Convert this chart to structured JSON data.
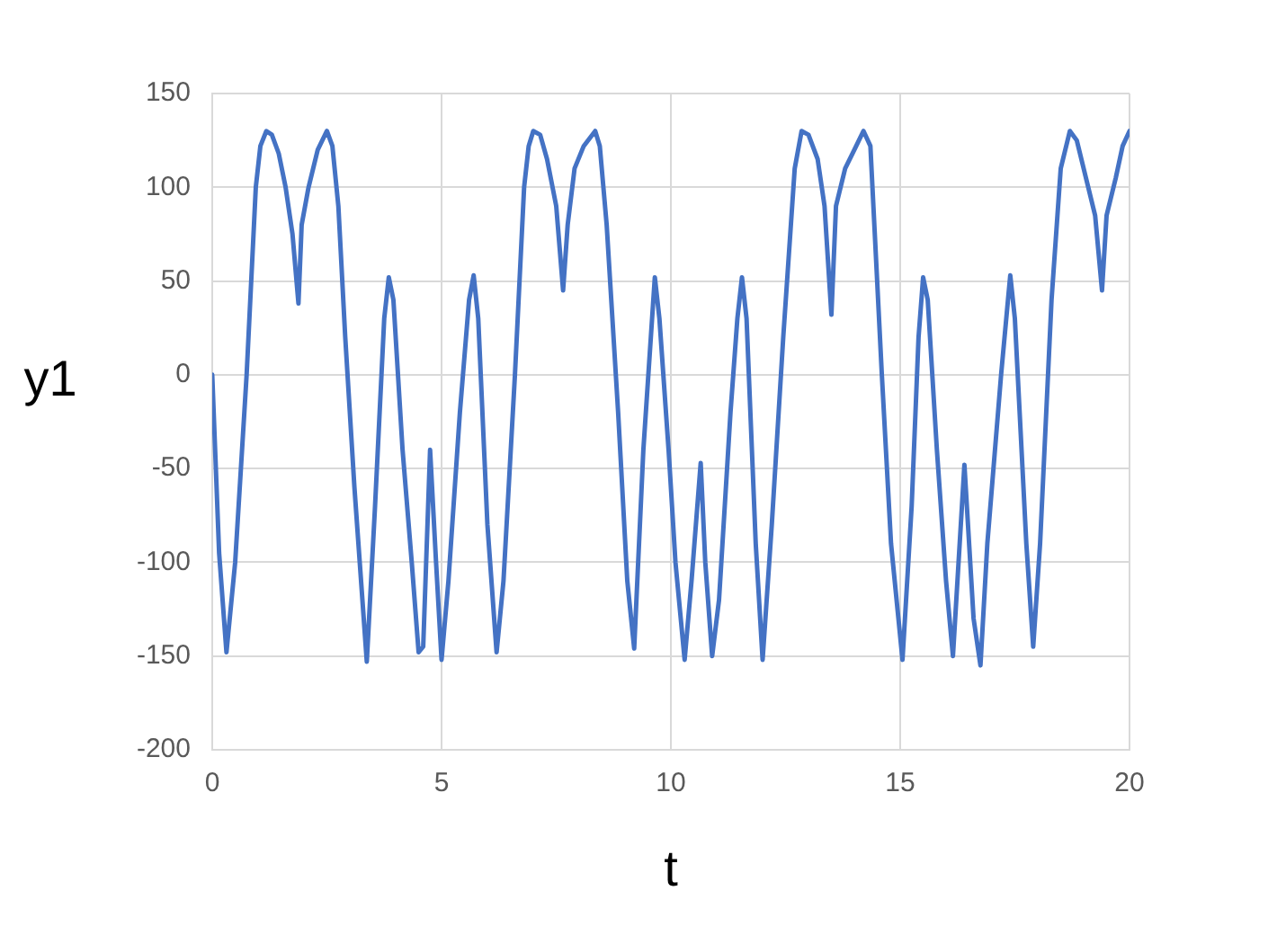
{
  "chart_data": {
    "type": "line",
    "xlabel": "t",
    "ylabel": "y1",
    "color": "#4472c4",
    "xlim": [
      0,
      20
    ],
    "xticks": [
      0,
      5,
      10,
      15,
      20
    ],
    "ylim": [
      -200,
      150
    ],
    "yticks": [
      -200,
      -150,
      -100,
      -50,
      0,
      50,
      100,
      150
    ],
    "grid": true,
    "legend": false,
    "marker": "none",
    "line_style": "solid",
    "series": [
      {
        "x": [
          0,
          0.15,
          0.31,
          0.5,
          0.75,
          0.95,
          1.05,
          1.18,
          1.3,
          1.45,
          1.6,
          1.75,
          1.88,
          1.95,
          2.1,
          2.3,
          2.5,
          2.62,
          2.75,
          2.9,
          3.1,
          3.37,
          3.55,
          3.75,
          3.85,
          3.95,
          4.15,
          4.35,
          4.5,
          4.6,
          4.75,
          4.88,
          5.0,
          5.15,
          5.4,
          5.6,
          5.7,
          5.8,
          6.0,
          6.2,
          6.35,
          6.6,
          6.8,
          6.9,
          7.0,
          7.15,
          7.3,
          7.5,
          7.65,
          7.75,
          7.9,
          8.1,
          8.35,
          8.45,
          8.6,
          8.85,
          9.05,
          9.2,
          9.4,
          9.65,
          9.75,
          9.95,
          10.1,
          10.3,
          10.45,
          10.65,
          10.75,
          10.9,
          11.05,
          11.3,
          11.45,
          11.55,
          11.65,
          11.85,
          12.0,
          12.2,
          12.45,
          12.7,
          12.85,
          13.0,
          13.2,
          13.35,
          13.5,
          13.6,
          13.8,
          14.0,
          14.2,
          14.35,
          14.6,
          14.8,
          15.05,
          15.25,
          15.4,
          15.5,
          15.6,
          15.8,
          16.0,
          16.15,
          16.4,
          16.6,
          16.75,
          16.9,
          17.2,
          17.35,
          17.4,
          17.5,
          17.75,
          17.9,
          18.05,
          18.3,
          18.5,
          18.7,
          18.85,
          19.05,
          19.25,
          19.4,
          19.5,
          19.7,
          19.85,
          20
        ],
        "values": [
          0,
          -95,
          -148,
          -100,
          0,
          100,
          122,
          130,
          128,
          118,
          100,
          75,
          38,
          80,
          100,
          120,
          130,
          122,
          90,
          20,
          -60,
          -153,
          -70,
          30,
          52,
          40,
          -40,
          -100,
          -148,
          -145,
          -40,
          -100,
          -152,
          -110,
          -20,
          40,
          53,
          30,
          -80,
          -148,
          -110,
          0,
          100,
          122,
          130,
          128,
          115,
          90,
          45,
          80,
          110,
          122,
          130,
          122,
          80,
          -20,
          -110,
          -146,
          -40,
          52,
          30,
          -40,
          -100,
          -152,
          -110,
          -47,
          -100,
          -150,
          -120,
          -20,
          30,
          52,
          30,
          -90,
          -152,
          -80,
          20,
          110,
          130,
          128,
          115,
          90,
          32,
          90,
          110,
          120,
          130,
          122,
          0,
          -90,
          -152,
          -70,
          20,
          52,
          40,
          -40,
          -110,
          -150,
          -48,
          -130,
          -155,
          -90,
          0,
          40,
          53,
          30,
          -90,
          -145,
          -90,
          40,
          110,
          130,
          125,
          105,
          85,
          45,
          85,
          105,
          122,
          130
        ]
      }
    ]
  }
}
